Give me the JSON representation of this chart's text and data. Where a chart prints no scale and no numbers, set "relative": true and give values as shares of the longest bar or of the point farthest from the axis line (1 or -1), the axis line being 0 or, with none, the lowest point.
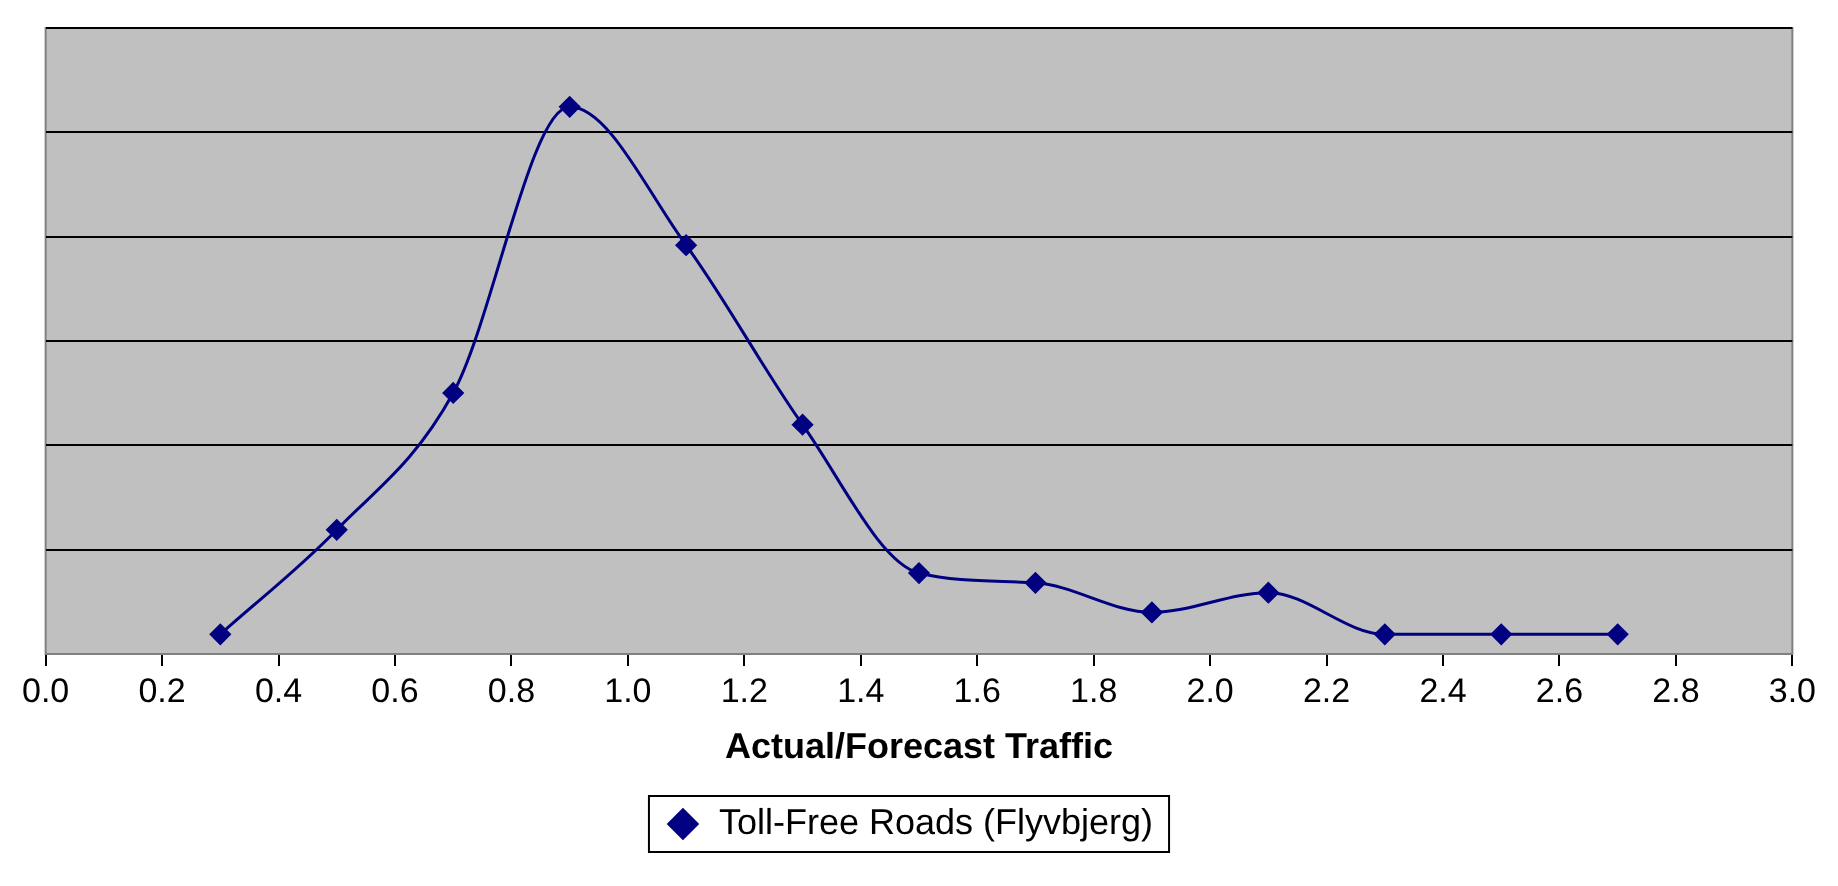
{
  "chart_data": {
    "type": "line",
    "xlabel": "Actual/Forecast Traffic",
    "relative": true,
    "grid": "y",
    "legend": "bottom",
    "tick_labels": "x",
    "marker": "diamond",
    "line_style": "solid",
    "xlim": [
      0,
      3
    ],
    "xticks": [
      {
        "value": 0,
        "label": "0.0"
      },
      {
        "value": 0.2,
        "label": "0.2"
      },
      {
        "value": 0.4,
        "label": "0.4"
      },
      {
        "value": 0.6,
        "label": "0.6"
      },
      {
        "value": 0.8,
        "label": "0.8"
      },
      {
        "value": 1,
        "label": "1.0"
      },
      {
        "value": 1.2,
        "label": "1.2"
      },
      {
        "value": 1.4,
        "label": "1.4"
      },
      {
        "value": 1.6,
        "label": "1.6"
      },
      {
        "value": 1.8,
        "label": "1.8"
      },
      {
        "value": 2,
        "label": "2.0"
      },
      {
        "value": 2.2,
        "label": "2.2"
      },
      {
        "value": 2.4,
        "label": "2.4"
      },
      {
        "value": 2.6,
        "label": "2.6"
      },
      {
        "value": 2.8,
        "label": "2.8"
      },
      {
        "value": 3,
        "label": "3.0"
      }
    ],
    "x": [
      0.3,
      0.5,
      0.7,
      0.9,
      1.1,
      1.3,
      1.5,
      1.7,
      1.9,
      2.1,
      2.3,
      2.5,
      2.7
    ],
    "series": [
      {
        "name": "Toll-Free Roads (Flyvbjerg)",
        "color": "#000080",
        "values": [
          0.036,
          0.227,
          0.477,
          1,
          0.747,
          0.419,
          0.148,
          0.13,
          0.076,
          0.112,
          0.036,
          0.036,
          0.036
        ]
      }
    ]
  }
}
